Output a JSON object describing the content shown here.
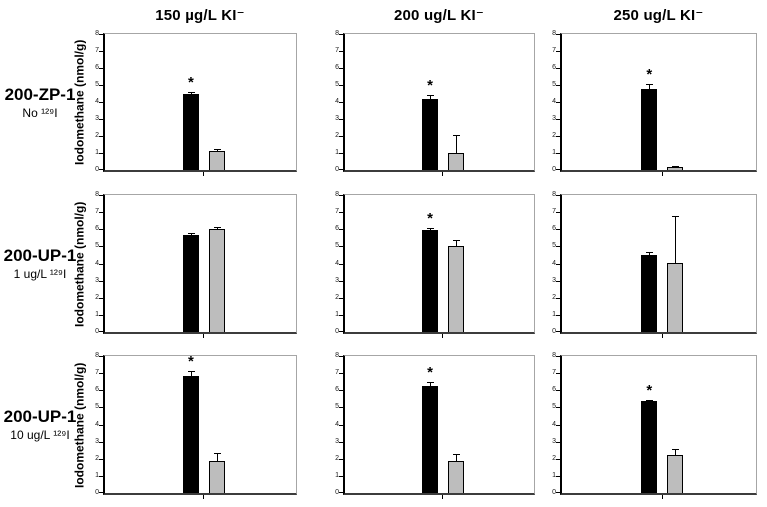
{
  "figure": {
    "columns": [
      "150 µg/L KI⁻",
      "200 ug/L KI⁻",
      "250 ug/L KI⁻"
    ],
    "rows": [
      {
        "title": "200-ZP-1",
        "subtitle": "No ¹²⁹I"
      },
      {
        "title": "200-UP-1",
        "subtitle": "1 ug/L ¹²⁹I"
      },
      {
        "title": "200-UP-1",
        "subtitle": "10 ug/L ¹²⁹I"
      }
    ],
    "ylabel": "Iodomethane (nmol/g)",
    "significance_marker": "*",
    "colors": {
      "black_bar": "#000000",
      "gray_bar": "#bdbdbd",
      "axis": "#000000",
      "panel_border": "#a6a6a6"
    }
  },
  "chart_data": [
    {
      "type": "bar",
      "row_label": "200-ZP-1 No ¹²⁹I",
      "column_label": "150 µg/L KI⁻",
      "ylabel": "Iodomethane (nmol/g)",
      "ylim": [
        0,
        8
      ],
      "yticks": [
        0,
        1,
        2,
        3,
        4,
        5,
        6,
        7,
        8
      ],
      "grid": false,
      "legend": "none",
      "series": [
        {
          "label": "black bar",
          "color": "#000000",
          "value": 4.5,
          "error": 0.1,
          "significant": true
        },
        {
          "label": "gray bar",
          "color": "#bdbdbd",
          "value": 1.1,
          "error": 0.15,
          "significant": false
        }
      ]
    },
    {
      "type": "bar",
      "row_label": "200-ZP-1 No ¹²⁹I",
      "column_label": "200 ug/L KI⁻",
      "ylabel": "Iodomethane (nmol/g)",
      "ylim": [
        0,
        8
      ],
      "yticks": [
        0,
        1,
        2,
        3,
        4,
        5,
        6,
        7,
        8
      ],
      "grid": false,
      "legend": "none",
      "series": [
        {
          "label": "black bar",
          "color": "#000000",
          "value": 4.15,
          "error": 0.25,
          "significant": true
        },
        {
          "label": "gray bar",
          "color": "#bdbdbd",
          "value": 1.0,
          "error": 1.05,
          "significant": false
        }
      ]
    },
    {
      "type": "bar",
      "row_label": "200-ZP-1 No ¹²⁹I",
      "column_label": "250 ug/L KI⁻",
      "ylabel": "Iodomethane (nmol/g)",
      "ylim": [
        0,
        8
      ],
      "yticks": [
        0,
        1,
        2,
        3,
        4,
        5,
        6,
        7,
        8
      ],
      "grid": false,
      "legend": "none",
      "series": [
        {
          "label": "black bar",
          "color": "#000000",
          "value": 4.75,
          "error": 0.3,
          "significant": true
        },
        {
          "label": "gray bar",
          "color": "#bdbdbd",
          "value": 0.15,
          "error": 0.1,
          "significant": false
        }
      ]
    },
    {
      "type": "bar",
      "row_label": "200-UP-1 1 ug/L ¹²⁹I",
      "column_label": "150 µg/L KI⁻",
      "ylabel": "Iodomethane (nmol/g)",
      "ylim": [
        0,
        8
      ],
      "yticks": [
        0,
        1,
        2,
        3,
        4,
        5,
        6,
        7,
        8
      ],
      "grid": false,
      "legend": "none",
      "series": [
        {
          "label": "black bar",
          "color": "#000000",
          "value": 5.65,
          "error": 0.15,
          "significant": false
        },
        {
          "label": "gray bar",
          "color": "#bdbdbd",
          "value": 6.0,
          "error": 0.15,
          "significant": false
        }
      ]
    },
    {
      "type": "bar",
      "row_label": "200-UP-1 1 ug/L ¹²⁹I",
      "column_label": "200 ug/L KI⁻",
      "ylabel": "Iodomethane (nmol/g)",
      "ylim": [
        0,
        8
      ],
      "yticks": [
        0,
        1,
        2,
        3,
        4,
        5,
        6,
        7,
        8
      ],
      "grid": false,
      "legend": "none",
      "series": [
        {
          "label": "black bar",
          "color": "#000000",
          "value": 5.95,
          "error": 0.1,
          "significant": true
        },
        {
          "label": "gray bar",
          "color": "#bdbdbd",
          "value": 5.05,
          "error": 0.35,
          "significant": false
        }
      ]
    },
    {
      "type": "bar",
      "row_label": "200-UP-1 1 ug/L ¹²⁹I",
      "column_label": "250 ug/L KI⁻",
      "ylabel": "Iodomethane (nmol/g)",
      "ylim": [
        0,
        8
      ],
      "yticks": [
        0,
        1,
        2,
        3,
        4,
        5,
        6,
        7,
        8
      ],
      "grid": false,
      "legend": "none",
      "series": [
        {
          "label": "black bar",
          "color": "#000000",
          "value": 4.5,
          "error": 0.15,
          "significant": false
        },
        {
          "label": "gray bar",
          "color": "#bdbdbd",
          "value": 4.05,
          "error": 2.7,
          "significant": false
        }
      ]
    },
    {
      "type": "bar",
      "row_label": "200-UP-1 10 ug/L ¹²⁹I",
      "column_label": "150 µg/L KI⁻",
      "ylabel": "Iodomethane (nmol/g)",
      "ylim": [
        0,
        8
      ],
      "yticks": [
        0,
        1,
        2,
        3,
        4,
        5,
        6,
        7,
        8
      ],
      "grid": false,
      "legend": "none",
      "series": [
        {
          "label": "black bar",
          "color": "#000000",
          "value": 6.85,
          "error": 0.25,
          "significant": true
        },
        {
          "label": "gray bar",
          "color": "#bdbdbd",
          "value": 1.85,
          "error": 0.5,
          "significant": false
        }
      ]
    },
    {
      "type": "bar",
      "row_label": "200-UP-1 10 ug/L ¹²⁹I",
      "column_label": "200 ug/L KI⁻",
      "ylabel": "Iodomethane (nmol/g)",
      "ylim": [
        0,
        8
      ],
      "yticks": [
        0,
        1,
        2,
        3,
        4,
        5,
        6,
        7,
        8
      ],
      "grid": false,
      "legend": "none",
      "series": [
        {
          "label": "black bar",
          "color": "#000000",
          "value": 6.25,
          "error": 0.25,
          "significant": true
        },
        {
          "label": "gray bar",
          "color": "#bdbdbd",
          "value": 1.85,
          "error": 0.4,
          "significant": false
        }
      ]
    },
    {
      "type": "bar",
      "row_label": "200-UP-1 10 ug/L ¹²⁹I",
      "column_label": "250 ug/L KI⁻",
      "ylabel": "Iodomethane (nmol/g)",
      "ylim": [
        0,
        8
      ],
      "yticks": [
        0,
        1,
        2,
        3,
        4,
        5,
        6,
        7,
        8
      ],
      "grid": false,
      "legend": "none",
      "series": [
        {
          "label": "black bar",
          "color": "#000000",
          "value": 5.35,
          "error": 0.1,
          "significant": true
        },
        {
          "label": "gray bar",
          "color": "#bdbdbd",
          "value": 2.2,
          "error": 0.35,
          "significant": false
        }
      ]
    }
  ]
}
